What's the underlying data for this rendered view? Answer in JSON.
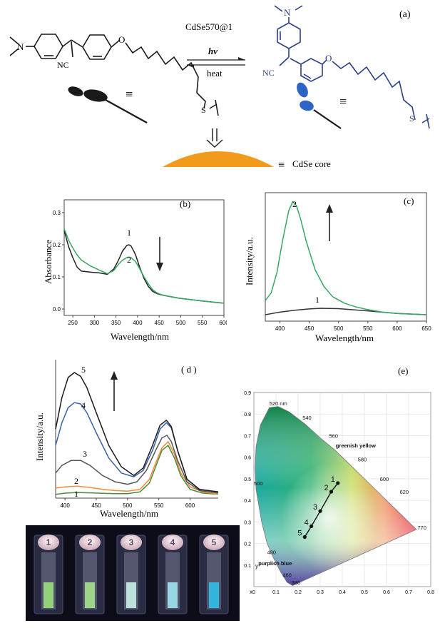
{
  "panel_a": {
    "label": "(a)",
    "title": "CdSe570@1",
    "forward": "hν",
    "reverse": "heat",
    "atom_o1": "O",
    "atom_o2": "O",
    "atom_nc1": "NC",
    "atom_nc2": "NC",
    "atom_n1": "N",
    "atom_n2": "N",
    "atom_s1": "S",
    "atom_s2": "S",
    "equiv": "≡",
    "core_label": "CdSe core",
    "colors": {
      "molecule_left": "#1a1a1a",
      "molecule_right": "#2b3f86",
      "core": "#f29a1c",
      "blue_blob": "#2f63c6"
    }
  },
  "chart_data": [
    {
      "panel": "(b)",
      "type": "line",
      "xlabel": "Wavelength/nm",
      "ylabel": "Absorbance",
      "xlim": [
        230,
        600
      ],
      "ylim": [
        -0.02,
        0.34
      ],
      "xticks": [
        "250",
        "300",
        "350",
        "400",
        "450",
        "500",
        "550",
        "600"
      ],
      "yticks": [
        "0.0",
        "0.1",
        "0.2",
        "0.3"
      ],
      "series": [
        {
          "name": "1",
          "color": "#222222",
          "x": [
            230,
            240,
            250,
            260,
            270,
            290,
            310,
            330,
            345,
            355,
            365,
            375,
            380,
            385,
            395,
            405,
            415,
            425,
            435,
            445,
            455,
            470,
            500,
            550,
            600
          ],
          "y": [
            0.245,
            0.195,
            0.16,
            0.13,
            0.118,
            0.115,
            0.113,
            0.108,
            0.125,
            0.15,
            0.18,
            0.198,
            0.2,
            0.196,
            0.17,
            0.13,
            0.095,
            0.07,
            0.055,
            0.048,
            0.044,
            0.04,
            0.033,
            0.025,
            0.018
          ]
        },
        {
          "name": "2",
          "color": "#35a862",
          "x": [
            230,
            240,
            250,
            260,
            270,
            290,
            310,
            330,
            345,
            355,
            365,
            375,
            380,
            385,
            395,
            405,
            415,
            425,
            435,
            445,
            455,
            470,
            500,
            550,
            600
          ],
          "y": [
            0.25,
            0.215,
            0.19,
            0.168,
            0.152,
            0.135,
            0.122,
            0.11,
            0.12,
            0.138,
            0.152,
            0.16,
            0.162,
            0.16,
            0.148,
            0.125,
            0.1,
            0.078,
            0.06,
            0.05,
            0.045,
            0.04,
            0.033,
            0.025,
            0.018
          ]
        }
      ],
      "annotations": [
        "1",
        "2"
      ]
    },
    {
      "panel": "(c)",
      "type": "line",
      "xlabel": "Wavelength/nm",
      "ylabel": "Intensity/a.u.",
      "xlim": [
        375,
        650
      ],
      "ylim": [
        0,
        1
      ],
      "xticks": [
        "400",
        "450",
        "500",
        "550",
        "600",
        "650"
      ],
      "series": [
        {
          "name": "1",
          "color": "#333333",
          "x": [
            375,
            400,
            425,
            450,
            470,
            500,
            550,
            600,
            650
          ],
          "y": [
            0.05,
            0.07,
            0.085,
            0.095,
            0.1,
            0.097,
            0.08,
            0.06,
            0.05
          ]
        },
        {
          "name": "2",
          "color": "#35a862",
          "x": [
            375,
            385,
            395,
            405,
            415,
            422,
            428,
            435,
            445,
            460,
            475,
            490,
            510,
            530,
            550,
            575,
            600,
            650
          ],
          "y": [
            0.16,
            0.22,
            0.38,
            0.64,
            0.86,
            0.93,
            0.9,
            0.8,
            0.62,
            0.4,
            0.27,
            0.19,
            0.14,
            0.11,
            0.09,
            0.07,
            0.06,
            0.05
          ]
        }
      ],
      "annotations": [
        "1",
        "2"
      ]
    },
    {
      "panel": "(d)",
      "type": "line",
      "xlabel": "Wavelength/nm",
      "ylabel": "Intensity/a.u.",
      "xlim": [
        385,
        645
      ],
      "ylim": [
        0,
        1
      ],
      "xticks": [
        "400",
        "450",
        "500",
        "550",
        "600"
      ],
      "series": [
        {
          "name": "1",
          "color": "#4a8a3a",
          "x": [
            385,
            400,
            420,
            440,
            460,
            480,
            500,
            520,
            535,
            545,
            555,
            565,
            575,
            585,
            600,
            620,
            645
          ],
          "y": [
            0.03,
            0.04,
            0.045,
            0.042,
            0.038,
            0.035,
            0.035,
            0.05,
            0.12,
            0.25,
            0.38,
            0.42,
            0.32,
            0.18,
            0.07,
            0.04,
            0.03
          ]
        },
        {
          "name": "2",
          "color": "#f08a3c",
          "x": [
            385,
            400,
            420,
            440,
            460,
            480,
            500,
            520,
            535,
            545,
            555,
            565,
            575,
            585,
            600,
            620,
            645
          ],
          "y": [
            0.08,
            0.09,
            0.095,
            0.085,
            0.07,
            0.06,
            0.055,
            0.07,
            0.15,
            0.28,
            0.4,
            0.45,
            0.35,
            0.2,
            0.09,
            0.05,
            0.03
          ]
        },
        {
          "name": "3",
          "color": "#555555",
          "x": [
            385,
            395,
            410,
            425,
            440,
            460,
            480,
            500,
            515,
            530,
            545,
            555,
            563,
            570,
            580,
            595,
            615,
            645
          ],
          "y": [
            0.2,
            0.26,
            0.3,
            0.3,
            0.26,
            0.18,
            0.13,
            0.11,
            0.13,
            0.22,
            0.38,
            0.48,
            0.5,
            0.45,
            0.3,
            0.13,
            0.06,
            0.04
          ]
        },
        {
          "name": "4",
          "color": "#3b5ea8",
          "x": [
            385,
            395,
            405,
            415,
            425,
            435,
            450,
            470,
            490,
            510,
            525,
            540,
            552,
            562,
            570,
            580,
            595,
            615,
            645
          ],
          "y": [
            0.42,
            0.6,
            0.72,
            0.76,
            0.75,
            0.68,
            0.52,
            0.32,
            0.2,
            0.17,
            0.22,
            0.38,
            0.55,
            0.6,
            0.56,
            0.38,
            0.15,
            0.07,
            0.05
          ]
        },
        {
          "name": "5",
          "color": "#1a1a1a",
          "x": [
            385,
            395,
            405,
            415,
            425,
            435,
            450,
            470,
            490,
            510,
            525,
            540,
            552,
            562,
            570,
            580,
            595,
            615,
            645
          ],
          "y": [
            0.55,
            0.8,
            0.96,
            1.0,
            0.97,
            0.88,
            0.68,
            0.42,
            0.25,
            0.18,
            0.24,
            0.42,
            0.58,
            0.62,
            0.57,
            0.38,
            0.15,
            0.07,
            0.05
          ]
        }
      ],
      "annotations": [
        "1",
        "2",
        "3",
        "4",
        "5"
      ]
    },
    {
      "panel": "(e)",
      "type": "scatter",
      "xlabel": "x",
      "ylabel": "y",
      "xlim": [
        0,
        0.8
      ],
      "ylim": [
        0,
        0.9
      ],
      "xticks": [
        "0",
        "0.1",
        "0.2",
        "0.3",
        "0.4",
        "0.5",
        "0.6",
        "0.7",
        "0.8"
      ],
      "yticks": [
        "0.1",
        "0.2",
        "0.3",
        "0.4",
        "0.5",
        "0.6",
        "0.7",
        "0.8",
        "0.9"
      ],
      "points": [
        {
          "label": "1",
          "x": 0.38,
          "y": 0.48
        },
        {
          "label": "2",
          "x": 0.35,
          "y": 0.44
        },
        {
          "label": "3",
          "x": 0.3,
          "y": 0.35
        },
        {
          "label": "4",
          "x": 0.26,
          "y": 0.28
        },
        {
          "label": "5",
          "x": 0.23,
          "y": 0.23
        }
      ],
      "annotations": [
        "520 nm",
        "540",
        "560",
        "580",
        "600",
        "620",
        "770",
        "500",
        "480",
        "460",
        "380",
        "greenish yellow",
        "purplish blue"
      ]
    }
  ],
  "photo": {
    "vials": [
      {
        "label": "1",
        "glow": "#9be07a"
      },
      {
        "label": "2",
        "glow": "#a6e28c"
      },
      {
        "label": "3",
        "glow": "#c8f0e6"
      },
      {
        "label": "4",
        "glow": "#9ee6f0"
      },
      {
        "label": "5",
        "glow": "#2ec0e8"
      }
    ]
  }
}
